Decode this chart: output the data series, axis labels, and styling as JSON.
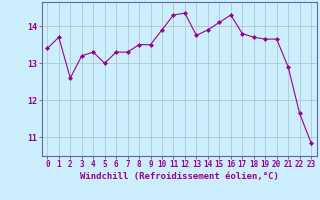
{
  "x": [
    0,
    1,
    2,
    3,
    4,
    5,
    6,
    7,
    8,
    9,
    10,
    11,
    12,
    13,
    14,
    15,
    16,
    17,
    18,
    19,
    20,
    21,
    22,
    23
  ],
  "y": [
    13.4,
    13.7,
    12.6,
    13.2,
    13.3,
    13.0,
    13.3,
    13.3,
    13.5,
    13.5,
    13.9,
    14.3,
    14.35,
    13.75,
    13.9,
    14.1,
    14.3,
    13.8,
    13.7,
    13.65,
    13.65,
    12.9,
    11.65,
    10.85
  ],
  "line_color": "#990099",
  "marker": "D",
  "marker_size": 2,
  "bg_color": "#cceeff",
  "grid_color": "#aacccc",
  "xlabel": "Windchill (Refroidissement éolien,°C)",
  "xlabel_color": "#990099",
  "tick_color": "#990099",
  "axis_color": "#666699",
  "yticks": [
    11,
    12,
    13,
    14
  ],
  "xticks": [
    0,
    1,
    2,
    3,
    4,
    5,
    6,
    7,
    8,
    9,
    10,
    11,
    12,
    13,
    14,
    15,
    16,
    17,
    18,
    19,
    20,
    21,
    22,
    23
  ],
  "ylim": [
    10.5,
    14.65
  ],
  "xlim": [
    -0.5,
    23.5
  ],
  "tick_fontsize": 5.5,
  "xlabel_fontsize": 6.5
}
